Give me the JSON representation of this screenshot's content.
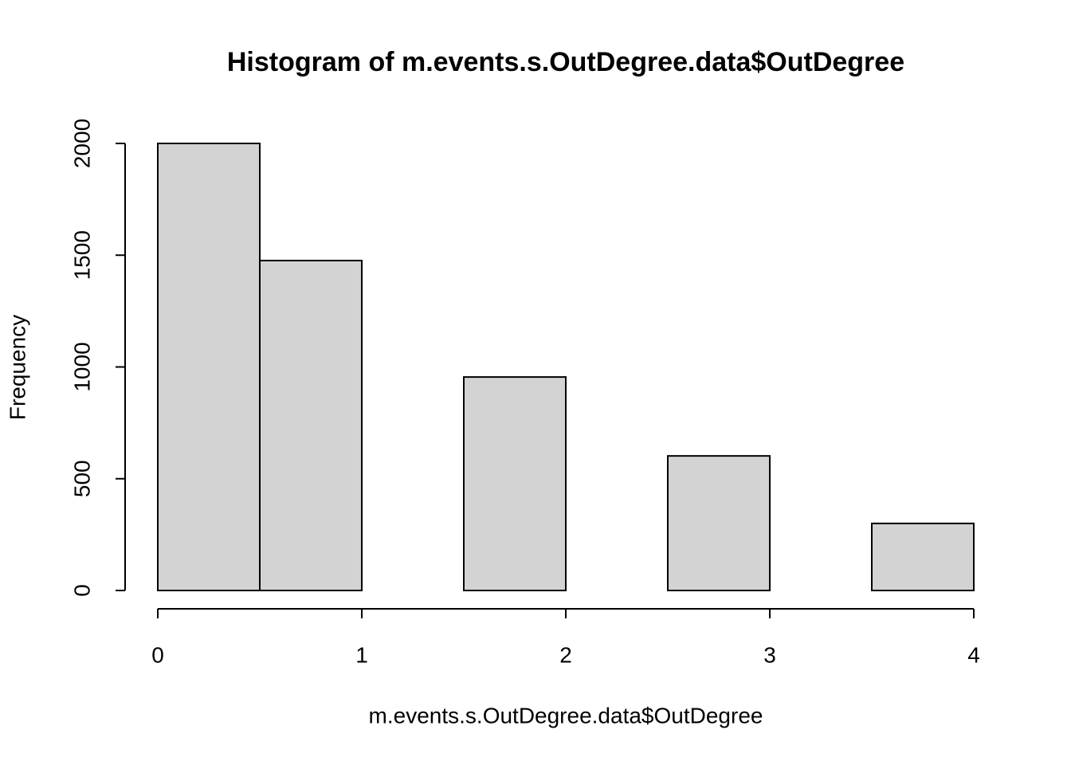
{
  "chart_data": {
    "type": "histogram",
    "title": "Histogram of m.events.s.OutDegree.data$OutDegree",
    "x_label": "m.events.s.OutDegree.data$OutDegree",
    "y_label": "Frequency",
    "bins": [
      0,
      0.5,
      1,
      1.5,
      2,
      2.5,
      3,
      3.5,
      4
    ],
    "counts": [
      2000,
      1476,
      0,
      955,
      0,
      602,
      0,
      300
    ],
    "color": "#d3d3d3",
    "xlim": [
      0,
      4
    ],
    "xticks": [
      0,
      1,
      2,
      3,
      4
    ],
    "ylim": [
      0,
      2000
    ],
    "yticks": [
      0,
      500,
      1000,
      1500,
      2000
    ]
  }
}
